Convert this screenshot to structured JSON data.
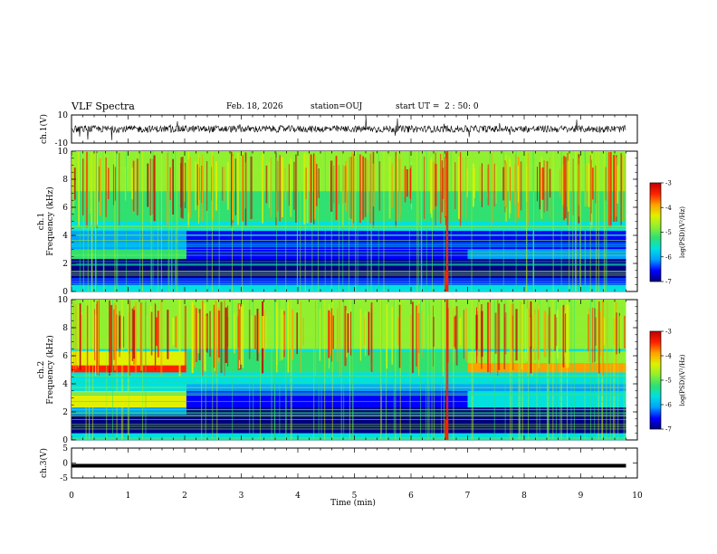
{
  "header": {
    "title": "VLF Spectra",
    "date": "Feb. 18, 2026",
    "station": "station=OUJ",
    "start": "start UT =  2 : 50: 0"
  },
  "colors": {
    "colormap": [
      "#000080",
      "#0000ff",
      "#00a0ff",
      "#00e0e0",
      "#30e070",
      "#90f030",
      "#e0f000",
      "#ffa000",
      "#ff2000",
      "#c00000"
    ]
  },
  "chart_data": [
    {
      "type": "line",
      "ylabel": "ch.1(V)",
      "ylim": [
        -10,
        10
      ],
      "yticks": [
        "10",
        "-10"
      ],
      "xlim": [
        0,
        10
      ],
      "series": [
        {
          "description_baseline": 0
        }
      ]
    },
    {
      "type": "heatmap",
      "ylabel": "ch.1\nFrequency (kHz)",
      "ylabel_lines": [
        "ch.1",
        "Frequency (kHz)"
      ],
      "ylim": [
        0,
        10
      ],
      "yticks": [
        "0",
        "2",
        "4",
        "6",
        "8",
        "10"
      ],
      "xlim": [
        0,
        10
      ],
      "data_end_min": 9.8,
      "colorbar": {
        "label": "log(PSD)(V²/Hz)",
        "range": [
          -7,
          -3
        ],
        "ticks": [
          "-3",
          "-4",
          "-5",
          "-6",
          "-7"
        ]
      }
    },
    {
      "type": "heatmap",
      "ylabel": "ch.2\nFrequency (kHz)",
      "ylabel_lines": [
        "ch.2",
        "Frequency (kHz)"
      ],
      "ylim": [
        0,
        10
      ],
      "yticks": [
        "0",
        "2",
        "4",
        "6",
        "8",
        "10"
      ],
      "xlim": [
        0,
        10
      ],
      "data_end_min": 9.8,
      "colorbar": {
        "label": "log(PSD)(V²/Hz)",
        "range": [
          -7,
          -3
        ],
        "ticks": [
          "-3",
          "-4",
          "-5",
          "-6",
          "-7"
        ]
      }
    },
    {
      "type": "line",
      "ylabel": "ch.3(V)",
      "ylim": [
        -5,
        5
      ],
      "yticks": [
        "5",
        "0",
        "-5"
      ],
      "xlim": [
        0,
        10
      ],
      "series": [
        {
          "constant_value": -0.9
        }
      ]
    }
  ],
  "xaxis": {
    "label": "Time (min)",
    "ticks": [
      "0",
      "1",
      "2",
      "3",
      "4",
      "5",
      "6",
      "7",
      "8",
      "9",
      "10"
    ]
  }
}
